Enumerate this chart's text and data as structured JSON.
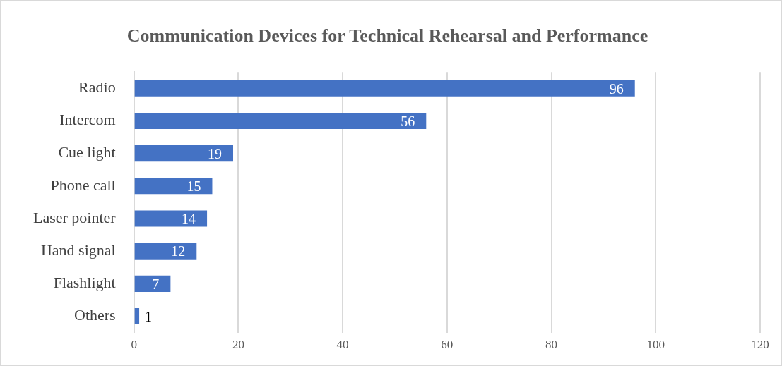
{
  "chart_data": {
    "type": "bar",
    "orientation": "horizontal",
    "title": "Communication Devices for Technical Rehearsal and Performance",
    "categories": [
      "Radio",
      "Intercom",
      "Cue light",
      "Phone call",
      "Laser pointer",
      "Hand signal",
      "Flashlight",
      "Others"
    ],
    "values": [
      96,
      56,
      19,
      15,
      14,
      12,
      7,
      1
    ],
    "color": "#4472c4",
    "xlim": [
      0,
      120
    ],
    "xticks": [
      0,
      20,
      40,
      60,
      80,
      100,
      120
    ],
    "grid": "x",
    "data_labels": true,
    "legend": false
  }
}
